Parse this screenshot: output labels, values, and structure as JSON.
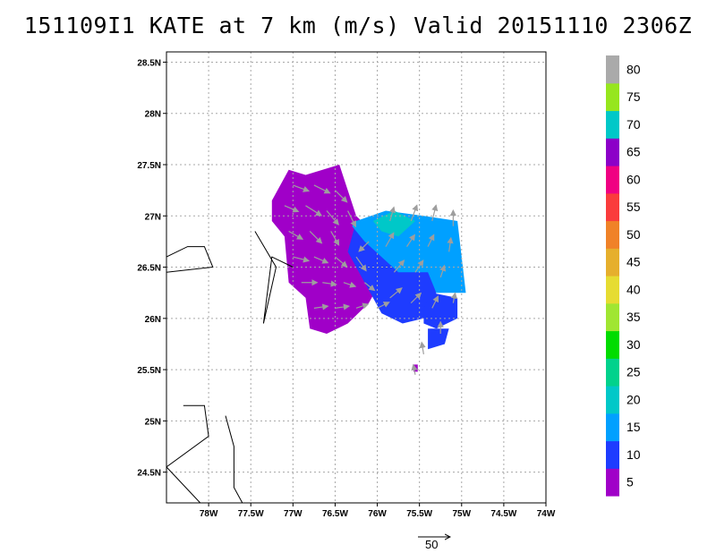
{
  "title": "151109I1 KATE at 7 km (m/s) Valid 20151110 2306Z",
  "chart_data": {
    "type": "heatmap",
    "title": "151109I1 KATE at 7 km (m/s) Valid 20151110 2306Z",
    "storm": "KATE",
    "level": "7 km",
    "units": "m/s",
    "valid": "20151110 2306Z",
    "xlim": [
      -78.5,
      -74.0
    ],
    "ylim": [
      24.2,
      28.6
    ],
    "x_ticks": [
      "78W",
      "77.5W",
      "77W",
      "76.5W",
      "76W",
      "75.5W",
      "75W",
      "74.5W",
      "74W"
    ],
    "x_tick_values": [
      -78.0,
      -77.5,
      -77.0,
      -76.5,
      -76.0,
      -75.5,
      -75.0,
      -74.5,
      -74.0
    ],
    "y_ticks": [
      "24.5N",
      "25N",
      "25.5N",
      "26N",
      "26.5N",
      "27N",
      "27.5N",
      "28N",
      "28.5N"
    ],
    "y_tick_values": [
      24.5,
      25.0,
      25.5,
      26.0,
      26.5,
      27.0,
      27.5,
      28.0,
      28.5
    ],
    "grid": true,
    "colorbar": {
      "labels": [
        "5",
        "10",
        "15",
        "20",
        "25",
        "30",
        "35",
        "40",
        "45",
        "50",
        "55",
        "60",
        "65",
        "70",
        "75",
        "80"
      ],
      "colors": [
        "#a000c8",
        "#1e3cff",
        "#00a0ff",
        "#00c8c8",
        "#00d28c",
        "#00dc00",
        "#a0e632",
        "#e6dc32",
        "#e6af2d",
        "#f08228",
        "#fa3c3c",
        "#f00082",
        "#8c00c8",
        "#00c8c8",
        "#96e61e",
        "#aaaaaa"
      ]
    },
    "wind_regions": [
      {
        "level": "5",
        "polygon": [
          [
            -77.25,
            27.15
          ],
          [
            -77.05,
            27.45
          ],
          [
            -76.85,
            27.4
          ],
          [
            -76.45,
            27.5
          ],
          [
            -76.35,
            27.25
          ],
          [
            -76.25,
            27.0
          ],
          [
            -76.0,
            26.8
          ],
          [
            -75.9,
            26.45
          ],
          [
            -76.1,
            26.15
          ],
          [
            -76.35,
            25.95
          ],
          [
            -76.6,
            25.85
          ],
          [
            -76.8,
            25.9
          ],
          [
            -76.85,
            26.2
          ],
          [
            -77.05,
            26.35
          ],
          [
            -77.1,
            26.8
          ],
          [
            -77.25,
            26.95
          ]
        ]
      },
      {
        "level": "10",
        "polygon": [
          [
            -76.25,
            26.95
          ],
          [
            -75.9,
            26.85
          ],
          [
            -75.55,
            26.7
          ],
          [
            -75.4,
            26.5
          ],
          [
            -75.3,
            26.25
          ],
          [
            -75.45,
            26.0
          ],
          [
            -75.7,
            25.95
          ],
          [
            -75.95,
            26.05
          ],
          [
            -76.15,
            26.35
          ],
          [
            -76.35,
            26.65
          ]
        ]
      },
      {
        "level": "10",
        "polygon": [
          [
            -75.35,
            26.25
          ],
          [
            -75.05,
            26.2
          ],
          [
            -75.05,
            26.0
          ],
          [
            -75.3,
            25.9
          ],
          [
            -75.45,
            25.95
          ],
          [
            -75.45,
            26.1
          ]
        ]
      },
      {
        "level": "10",
        "polygon": [
          [
            -75.4,
            25.9
          ],
          [
            -75.15,
            25.9
          ],
          [
            -75.2,
            25.75
          ],
          [
            -75.4,
            25.7
          ]
        ]
      },
      {
        "level": "15",
        "polygon": [
          [
            -76.25,
            26.95
          ],
          [
            -75.9,
            27.05
          ],
          [
            -75.45,
            27.0
          ],
          [
            -75.05,
            26.95
          ],
          [
            -75.0,
            26.6
          ],
          [
            -74.95,
            26.25
          ],
          [
            -75.3,
            26.25
          ],
          [
            -75.4,
            26.45
          ],
          [
            -75.55,
            26.45
          ],
          [
            -75.75,
            26.45
          ],
          [
            -75.95,
            26.6
          ],
          [
            -76.15,
            26.75
          ],
          [
            -76.3,
            26.9
          ]
        ]
      },
      {
        "level": "20",
        "polygon": [
          [
            -76.05,
            26.95
          ],
          [
            -75.8,
            27.05
          ],
          [
            -75.55,
            26.95
          ],
          [
            -75.75,
            26.8
          ],
          [
            -75.95,
            26.85
          ]
        ]
      },
      {
        "level": "5",
        "polygon": [
          [
            -75.57,
            25.55
          ],
          [
            -75.52,
            25.55
          ],
          [
            -75.52,
            25.48
          ],
          [
            -75.57,
            25.48
          ]
        ]
      }
    ],
    "wind_vectors": [
      {
        "lon": -77.0,
        "lat": 27.3,
        "u": 8,
        "v": -3
      },
      {
        "lon": -76.75,
        "lat": 27.3,
        "u": 8,
        "v": -4
      },
      {
        "lon": -76.5,
        "lat": 27.25,
        "u": 6,
        "v": -6
      },
      {
        "lon": -77.1,
        "lat": 27.1,
        "u": 7,
        "v": -3
      },
      {
        "lon": -76.85,
        "lat": 27.1,
        "u": 8,
        "v": -5
      },
      {
        "lon": -76.6,
        "lat": 27.05,
        "u": 6,
        "v": -7
      },
      {
        "lon": -76.35,
        "lat": 27.05,
        "u": 4,
        "v": -8
      },
      {
        "lon": -77.05,
        "lat": 26.85,
        "u": 7,
        "v": -4
      },
      {
        "lon": -76.8,
        "lat": 26.85,
        "u": 6,
        "v": -6
      },
      {
        "lon": -76.55,
        "lat": 26.85,
        "u": 4,
        "v": -7
      },
      {
        "lon": -77.0,
        "lat": 26.6,
        "u": 8,
        "v": -2
      },
      {
        "lon": -76.75,
        "lat": 26.6,
        "u": 7,
        "v": -3
      },
      {
        "lon": -76.5,
        "lat": 26.6,
        "u": 6,
        "v": -5
      },
      {
        "lon": -76.25,
        "lat": 26.6,
        "u": 5,
        "v": -7
      },
      {
        "lon": -76.9,
        "lat": 26.35,
        "u": 8,
        "v": 0
      },
      {
        "lon": -76.65,
        "lat": 26.35,
        "u": 7,
        "v": -1
      },
      {
        "lon": -76.4,
        "lat": 26.35,
        "u": 6,
        "v": -2
      },
      {
        "lon": -76.15,
        "lat": 26.35,
        "u": 5,
        "v": -4
      },
      {
        "lon": -76.75,
        "lat": 26.1,
        "u": 7,
        "v": 1
      },
      {
        "lon": -76.5,
        "lat": 26.1,
        "u": 7,
        "v": 1
      },
      {
        "lon": -76.25,
        "lat": 26.1,
        "u": 6,
        "v": 2
      },
      {
        "lon": -76.0,
        "lat": 26.1,
        "u": 6,
        "v": 3
      },
      {
        "lon": -76.1,
        "lat": 26.75,
        "u": -5,
        "v": -5
      },
      {
        "lon": -75.85,
        "lat": 26.95,
        "u": 2,
        "v": 7
      },
      {
        "lon": -75.6,
        "lat": 26.95,
        "u": 3,
        "v": 8
      },
      {
        "lon": -75.35,
        "lat": 26.95,
        "u": 2,
        "v": 8
      },
      {
        "lon": -75.1,
        "lat": 26.9,
        "u": 0,
        "v": 8
      },
      {
        "lon": -75.9,
        "lat": 26.7,
        "u": 4,
        "v": 7
      },
      {
        "lon": -75.65,
        "lat": 26.7,
        "u": 4,
        "v": 6
      },
      {
        "lon": -75.4,
        "lat": 26.7,
        "u": 3,
        "v": 6
      },
      {
        "lon": -75.15,
        "lat": 26.65,
        "u": 1,
        "v": 7
      },
      {
        "lon": -75.8,
        "lat": 26.45,
        "u": 5,
        "v": 6
      },
      {
        "lon": -75.55,
        "lat": 26.45,
        "u": 4,
        "v": 6
      },
      {
        "lon": -75.25,
        "lat": 26.4,
        "u": 2,
        "v": 6
      },
      {
        "lon": -75.85,
        "lat": 26.2,
        "u": 6,
        "v": 5
      },
      {
        "lon": -75.6,
        "lat": 26.15,
        "u": 5,
        "v": 5
      },
      {
        "lon": -75.35,
        "lat": 26.1,
        "u": 3,
        "v": 6
      },
      {
        "lon": -75.1,
        "lat": 26.15,
        "u": 1,
        "v": 5
      },
      {
        "lon": -75.25,
        "lat": 25.85,
        "u": 0,
        "v": 6
      },
      {
        "lon": -75.45,
        "lat": 25.65,
        "u": -1,
        "v": 6
      },
      {
        "lon": -75.55,
        "lat": 25.45,
        "u": -1,
        "v": 5
      }
    ],
    "coastlines": [
      [
        [
          -78.5,
          26.6
        ],
        [
          -78.25,
          26.7
        ],
        [
          -78.05,
          26.7
        ],
        [
          -77.95,
          26.5
        ],
        [
          -78.5,
          26.45
        ]
      ],
      [
        [
          -77.45,
          26.85
        ],
        [
          -77.2,
          26.5
        ],
        [
          -77.35,
          25.95
        ],
        [
          -77.25,
          26.6
        ],
        [
          -77.0,
          26.5
        ]
      ],
      [
        [
          -78.3,
          25.15
        ],
        [
          -78.05,
          25.15
        ],
        [
          -78.0,
          24.85
        ],
        [
          -78.5,
          24.55
        ],
        [
          -78.1,
          24.2
        ]
      ],
      [
        [
          -77.8,
          25.05
        ],
        [
          -77.7,
          24.75
        ],
        [
          -77.7,
          24.35
        ],
        [
          -77.6,
          24.2
        ]
      ]
    ],
    "reference_vector": {
      "label": "50",
      "value": 50
    }
  }
}
